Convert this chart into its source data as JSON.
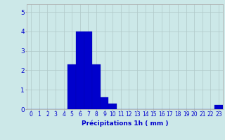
{
  "categories": [
    0,
    1,
    2,
    3,
    4,
    5,
    6,
    7,
    8,
    9,
    10,
    11,
    12,
    13,
    14,
    15,
    16,
    17,
    18,
    19,
    20,
    21,
    22,
    23
  ],
  "values": [
    0,
    0,
    0,
    0,
    0,
    2.3,
    4.0,
    4.0,
    2.3,
    0.6,
    0.3,
    0,
    0,
    0,
    0,
    0,
    0,
    0,
    0,
    0,
    0,
    0,
    0,
    0.2
  ],
  "bar_color": "#0000cc",
  "bar_edge_color": "#0000aa",
  "xlabel": "Précipitations 1h ( mm )",
  "ylim": [
    0,
    5.4
  ],
  "yticks": [
    0,
    1,
    2,
    3,
    4,
    5
  ],
  "background_color": "#cce8e8",
  "grid_color": "#b0c8c8",
  "xlabel_fontsize": 6.5,
  "tick_fontsize": 5.5
}
